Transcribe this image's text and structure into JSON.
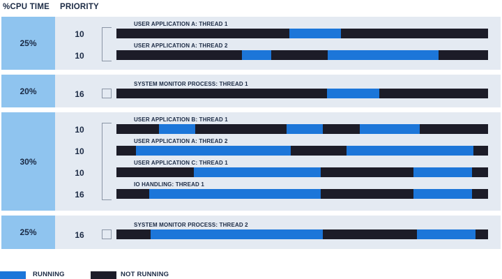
{
  "header": {
    "cpu_time": "%CPU TIME",
    "priority": "PRIORITY"
  },
  "colors": {
    "running": "#1c76d9",
    "not_running": "#1c1c28",
    "cpu_box": "#8fc4ef",
    "group_bg": "#e4eaf2"
  },
  "timeline_unit": "fraction of bar width",
  "groups": [
    {
      "cpu": "25%",
      "threads": [
        {
          "priority": "10",
          "label": "USER APPLICATION A: THREAD 1",
          "running": [
            [
              0.465,
              0.604
            ]
          ]
        },
        {
          "priority": "10",
          "label": "USER APPLICATION A: THREAD 2",
          "running": [
            [
              0.337,
              0.417
            ],
            [
              0.568,
              0.867
            ]
          ]
        }
      ]
    },
    {
      "cpu": "20%",
      "threads": [
        {
          "priority": "16",
          "label": "SYSTEM MONITOR PROCESS: THREAD 1",
          "running": [
            [
              0.567,
              0.707
            ]
          ]
        }
      ]
    },
    {
      "cpu": "30%",
      "threads": [
        {
          "priority": "10",
          "label": "USER APPLICATION B: THREAD 1",
          "running": [
            [
              0.114,
              0.212
            ],
            [
              0.458,
              0.555
            ],
            [
              0.655,
              0.816
            ]
          ]
        },
        {
          "priority": "10",
          "label": "USER APPLICATION A: THREAD 2",
          "running": [
            [
              0.052,
              0.47
            ],
            [
              0.62,
              0.96
            ]
          ]
        },
        {
          "priority": "10",
          "label": "USER APPLICATION C: THREAD 1",
          "running": [
            [
              0.208,
              0.55
            ],
            [
              0.8,
              0.957
            ]
          ]
        },
        {
          "priority": "16",
          "label": "IO HANDLING: THREAD 1",
          "running": [
            [
              0.088,
              0.55
            ],
            [
              0.8,
              0.957
            ]
          ]
        }
      ]
    },
    {
      "cpu": "25%",
      "threads": [
        {
          "priority": "16",
          "label": "SYSTEM MONITOR PROCESS: THREAD 2",
          "running": [
            [
              0.092,
              0.556
            ],
            [
              0.808,
              0.966
            ]
          ]
        }
      ]
    }
  ],
  "legend": {
    "running": "RUNNING",
    "not_running": "NOT RUNNING"
  }
}
